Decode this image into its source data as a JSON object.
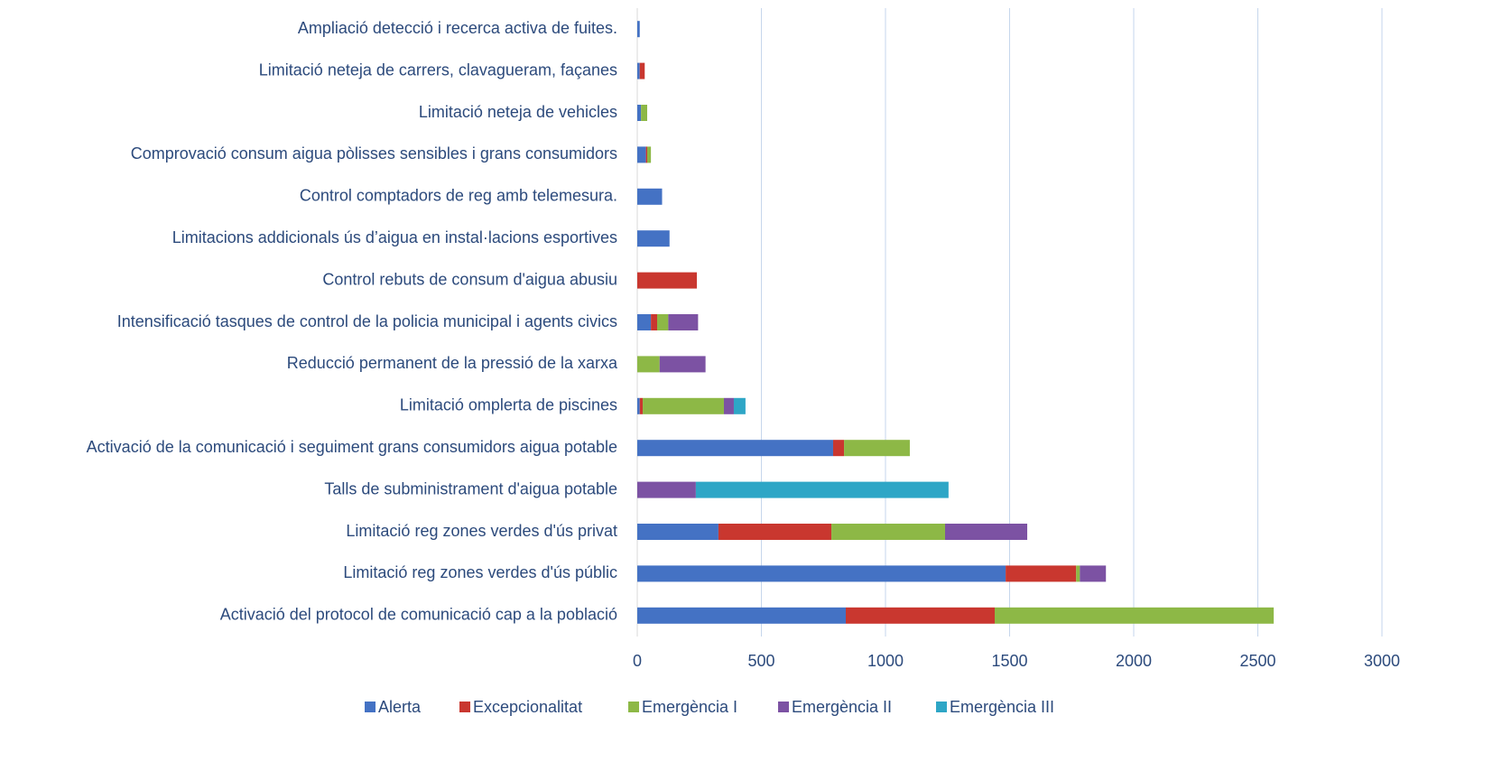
{
  "chart_data": {
    "type": "stacked_bar_horizontal",
    "categories": [
      "Ampliació detecció i recerca activa de fuites.",
      "Limitació neteja de carrers, clavagueram, façanes",
      "Limitació neteja de vehicles",
      "Comprovació consum aigua pòlisses sensibles i grans consumidors",
      "Control comptadors de reg amb telemesura.",
      "Limitacions addicionals ús d’aigua en instal·lacions esportives",
      "Control rebuts de consum d'aigua abusiu",
      "Intensificació tasques de control de la policia municipal i agents civics",
      "Reducció permanent de la pressió de la xarxa",
      "Limitació omplerta de piscines",
      "Activació de la comunicació i seguiment grans consumidors aigua potable",
      "Talls de subministrament d'aigua potable",
      "Limitació reg zones verdes d'ús privat",
      "Limitació reg zones verdes d'ús públic",
      "Activació del protocol de comunicació cap a la població"
    ],
    "series": [
      {
        "name": "Alerta",
        "color": "#4472c4",
        "values": [
          10,
          10,
          15,
          35,
          100,
          130,
          0,
          55,
          0,
          10,
          789,
          0,
          327,
          1484,
          840
        ]
      },
      {
        "name": "Excepcionalitat",
        "color": "#c9372f",
        "values": [
          0,
          20,
          0,
          5,
          0,
          0,
          240,
          25,
          0,
          12,
          44,
          0,
          455,
          284,
          600
        ]
      },
      {
        "name": "Emergència I",
        "color": "#8db846",
        "values": [
          0,
          0,
          25,
          15,
          0,
          0,
          0,
          45,
          90,
          327,
          265,
          0,
          458,
          15,
          1124
        ]
      },
      {
        "name": "Emergència II",
        "color": "#7c52a3",
        "values": [
          0,
          0,
          0,
          0,
          0,
          0,
          0,
          120,
          185,
          40,
          0,
          236,
          331,
          105,
          0
        ]
      },
      {
        "name": "Emergència III",
        "color": "#2ea6c6",
        "values": [
          0,
          0,
          0,
          0,
          0,
          0,
          0,
          0,
          0,
          47,
          0,
          1018,
          0,
          0,
          0
        ]
      }
    ],
    "xlim": [
      0,
      3000
    ],
    "xticks": [
      0,
      500,
      1000,
      1500,
      2000,
      2500,
      3000
    ],
    "grid": true,
    "legend": "bottom"
  }
}
